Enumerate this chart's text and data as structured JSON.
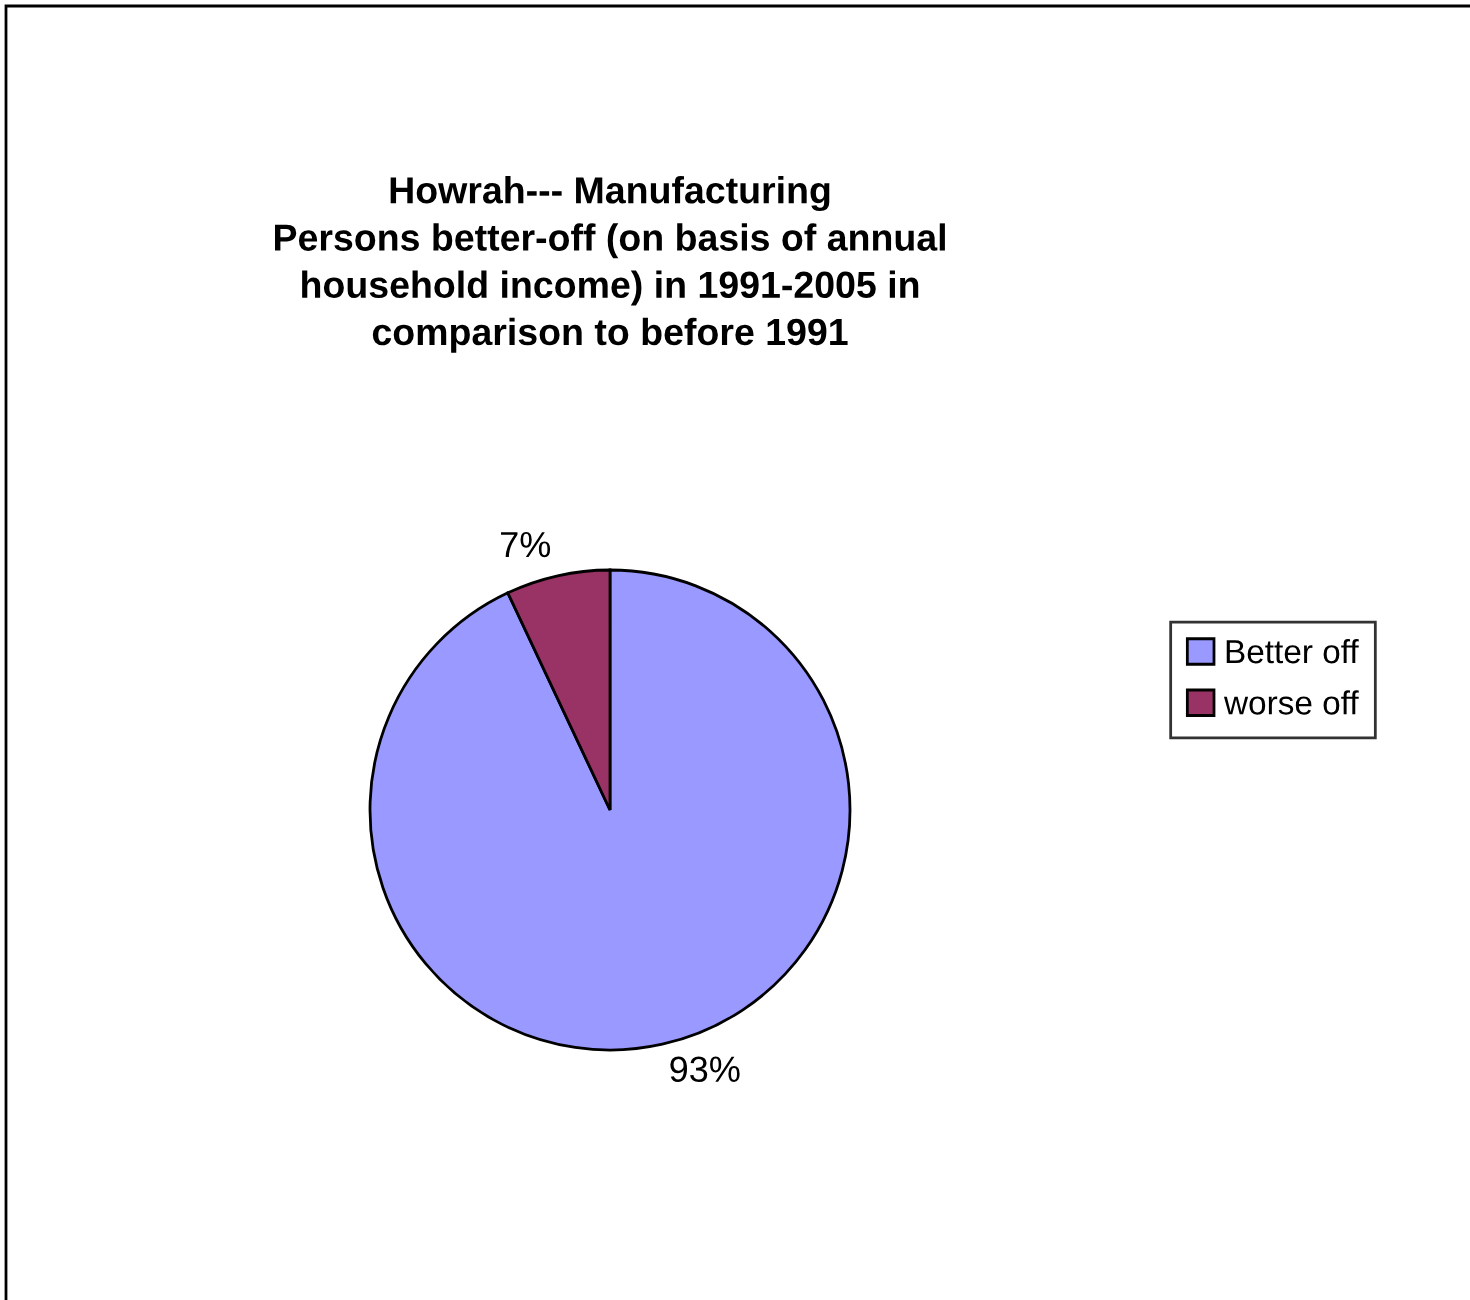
{
  "chart_data": {
    "type": "pie",
    "title": "Howrah--- Manufacturing\nPersons better-off (on basis of annual\nhousehold income) in 1991-2005 in\ncomparison to before 1991",
    "categories": [
      "Better off",
      "worse off"
    ],
    "values": [
      93,
      7
    ],
    "colors": [
      "#9999ff",
      "#993366"
    ],
    "value_labels": [
      "93%",
      "7%"
    ],
    "legend": "right"
  }
}
